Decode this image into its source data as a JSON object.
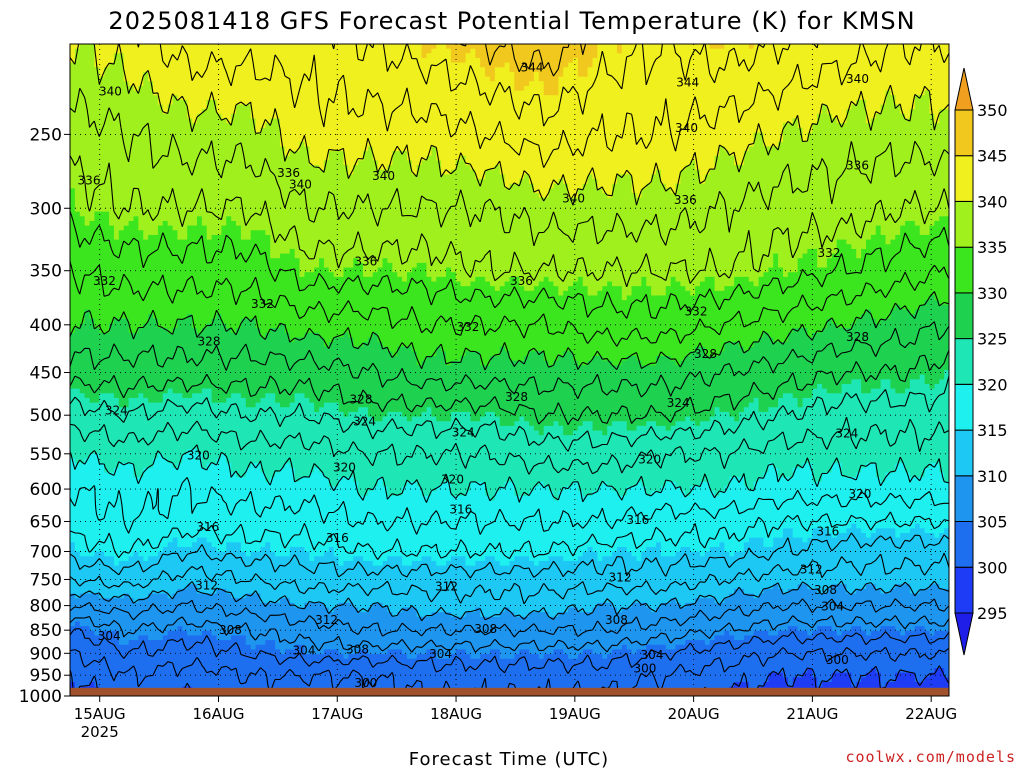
{
  "title": "2025081418 GFS Forecast Potential Temperature (K) for KMSN",
  "credit": "coolwx.com/models",
  "credit_color": "#cc2222",
  "ground_color": "#a0522d",
  "chart_data": {
    "type": "heatmap",
    "title": "2025081418 GFS Forecast Potential Temperature (K) for KMSN",
    "xlabel": "Forecast Time (UTC)",
    "ylabel": "",
    "x_ticks": [
      "15AUG",
      "16AUG",
      "17AUG",
      "18AUG",
      "19AUG",
      "20AUG",
      "21AUG",
      "22AUG"
    ],
    "x_tick_extra": "2025",
    "x_range_days": [
      14.75,
      22.15
    ],
    "y_scale": "log-pressure",
    "y_ticks": [
      250,
      300,
      350,
      400,
      450,
      500,
      550,
      600,
      650,
      700,
      750,
      800,
      850,
      900,
      950,
      1000
    ],
    "y_range_hPa": [
      200,
      1000
    ],
    "surface_hPa": 980,
    "colorbar_levels": [
      295,
      300,
      305,
      310,
      315,
      320,
      325,
      330,
      335,
      340,
      345,
      350
    ],
    "colorbar_colors": [
      "#1e1ee8",
      "#1e3cf5",
      "#1e6ef0",
      "#1e96f0",
      "#1ec8f5",
      "#1ef0f0",
      "#1ee6b4",
      "#1ed250",
      "#3ce61e",
      "#a0f01e",
      "#f0f01e",
      "#f0c81e",
      "#f0a01e"
    ],
    "contour_interval": 2,
    "isentropes_K": [
      298,
      300,
      302,
      304,
      306,
      308,
      310,
      312,
      314,
      316,
      318,
      320,
      322,
      324,
      326,
      328,
      330,
      332,
      334,
      336,
      338,
      340,
      342,
      344,
      346
    ],
    "profile_times_days": [
      14.75,
      15.25,
      15.75,
      16.25,
      16.75,
      17.25,
      17.75,
      18.25,
      18.75,
      19.25,
      19.75,
      20.25,
      20.75,
      21.25,
      21.75,
      22.15
    ],
    "profile_levels_hPa": [
      1000,
      950,
      900,
      850,
      800,
      750,
      700,
      650,
      600,
      550,
      500,
      450,
      400,
      350,
      300,
      250,
      200
    ],
    "theta_profiles_K": [
      [
        299,
        300,
        302,
        304,
        308,
        312,
        315,
        317,
        318,
        320,
        323,
        327,
        330,
        332,
        335,
        337,
        340
      ],
      [
        301,
        302,
        304,
        306,
        309,
        313,
        316,
        318,
        319,
        321,
        324,
        327,
        330,
        333,
        336,
        338,
        341
      ],
      [
        300,
        301,
        303,
        305,
        308,
        311,
        314,
        317,
        318,
        320,
        323,
        327,
        330,
        333,
        336,
        339,
        343
      ],
      [
        301,
        302,
        304,
        306,
        309,
        312,
        315,
        317,
        319,
        321,
        324,
        327,
        330,
        333,
        336,
        339,
        343
      ],
      [
        301,
        302,
        305,
        307,
        310,
        313,
        315,
        317,
        319,
        321,
        324,
        327,
        331,
        335,
        338,
        341,
        343
      ],
      [
        301,
        302,
        305,
        308,
        310,
        313,
        316,
        318,
        320,
        322,
        325,
        328,
        331,
        335,
        338,
        341,
        344
      ],
      [
        302,
        303,
        305,
        308,
        311,
        313,
        316,
        318,
        320,
        322,
        325,
        329,
        332,
        335,
        338,
        341,
        345
      ],
      [
        302,
        303,
        305,
        308,
        311,
        313,
        316,
        318,
        320,
        322,
        325,
        329,
        332,
        336,
        338,
        342,
        346
      ],
      [
        302,
        303,
        305,
        308,
        311,
        313,
        316,
        318,
        320,
        323,
        326,
        329,
        332,
        336,
        339,
        343,
        347
      ],
      [
        302,
        303,
        305,
        308,
        310,
        313,
        315,
        318,
        320,
        323,
        326,
        329,
        333,
        336,
        339,
        342,
        345
      ],
      [
        301,
        302,
        304,
        307,
        310,
        313,
        315,
        317,
        320,
        322,
        326,
        329,
        333,
        336,
        339,
        342,
        344
      ],
      [
        300,
        301,
        303,
        306,
        309,
        312,
        315,
        317,
        320,
        322,
        325,
        328,
        332,
        336,
        338,
        341,
        345
      ],
      [
        299,
        300,
        302,
        305,
        308,
        311,
        314,
        316,
        319,
        321,
        324,
        327,
        331,
        335,
        337,
        340,
        344
      ],
      [
        299,
        300,
        302,
        305,
        308,
        311,
        313,
        316,
        319,
        321,
        323,
        326,
        330,
        334,
        337,
        339,
        343
      ],
      [
        299,
        300,
        302,
        305,
        308,
        311,
        313,
        316,
        319,
        321,
        323,
        326,
        329,
        333,
        336,
        339,
        342
      ],
      [
        298,
        300,
        302,
        305,
        308,
        311,
        313,
        316,
        319,
        321,
        323,
        325,
        328,
        332,
        336,
        339,
        342
      ]
    ],
    "contour_labels": [
      {
        "text": "340",
        "day": 15.09,
        "p": 225
      },
      {
        "text": "336",
        "day": 14.91,
        "p": 280
      },
      {
        "text": "336",
        "day": 16.59,
        "p": 275
      },
      {
        "text": "340",
        "day": 16.69,
        "p": 283
      },
      {
        "text": "340",
        "day": 17.39,
        "p": 277
      },
      {
        "text": "344",
        "day": 18.64,
        "p": 212
      },
      {
        "text": "344",
        "day": 19.95,
        "p": 220
      },
      {
        "text": "340",
        "day": 19.94,
        "p": 246
      },
      {
        "text": "340",
        "day": 18.99,
        "p": 293
      },
      {
        "text": "336",
        "day": 19.93,
        "p": 294
      },
      {
        "text": "340",
        "day": 21.38,
        "p": 218
      },
      {
        "text": "336",
        "day": 21.38,
        "p": 270
      },
      {
        "text": "332",
        "day": 21.14,
        "p": 335
      },
      {
        "text": "332",
        "day": 15.04,
        "p": 359
      },
      {
        "text": "332",
        "day": 16.37,
        "p": 380
      },
      {
        "text": "336",
        "day": 17.24,
        "p": 342
      },
      {
        "text": "336",
        "day": 18.55,
        "p": 359
      },
      {
        "text": "332",
        "day": 18.1,
        "p": 402
      },
      {
        "text": "332",
        "day": 20.02,
        "p": 387
      },
      {
        "text": "328",
        "day": 21.38,
        "p": 412
      },
      {
        "text": "328",
        "day": 15.92,
        "p": 417
      },
      {
        "text": "328",
        "day": 20.1,
        "p": 430
      },
      {
        "text": "328",
        "day": 17.2,
        "p": 481
      },
      {
        "text": "328",
        "day": 18.51,
        "p": 478
      },
      {
        "text": "324",
        "day": 15.14,
        "p": 494
      },
      {
        "text": "324",
        "day": 17.23,
        "p": 508
      },
      {
        "text": "324",
        "day": 18.06,
        "p": 522
      },
      {
        "text": "324",
        "day": 19.87,
        "p": 485
      },
      {
        "text": "324",
        "day": 21.29,
        "p": 523
      },
      {
        "text": "320",
        "day": 15.83,
        "p": 552
      },
      {
        "text": "320",
        "day": 17.06,
        "p": 569
      },
      {
        "text": "320",
        "day": 17.97,
        "p": 586
      },
      {
        "text": "320",
        "day": 19.63,
        "p": 558
      },
      {
        "text": "320",
        "day": 21.4,
        "p": 607
      },
      {
        "text": "316",
        "day": 15.91,
        "p": 659
      },
      {
        "text": "316",
        "day": 17.0,
        "p": 677
      },
      {
        "text": "316",
        "day": 18.04,
        "p": 631
      },
      {
        "text": "316",
        "day": 19.53,
        "p": 648
      },
      {
        "text": "316",
        "day": 21.13,
        "p": 666
      },
      {
        "text": "312",
        "day": 15.9,
        "p": 761
      },
      {
        "text": "312",
        "day": 17.92,
        "p": 763
      },
      {
        "text": "312",
        "day": 19.38,
        "p": 746
      },
      {
        "text": "312",
        "day": 20.99,
        "p": 732
      },
      {
        "text": "308",
        "day": 21.11,
        "p": 770
      },
      {
        "text": "304",
        "day": 21.17,
        "p": 802
      },
      {
        "text": "312",
        "day": 16.91,
        "p": 829
      },
      {
        "text": "308",
        "day": 16.1,
        "p": 850
      },
      {
        "text": "308",
        "day": 18.25,
        "p": 848
      },
      {
        "text": "308",
        "day": 19.35,
        "p": 829
      },
      {
        "text": "304",
        "day": 15.08,
        "p": 862
      },
      {
        "text": "304",
        "day": 16.72,
        "p": 894
      },
      {
        "text": "308",
        "day": 17.17,
        "p": 892
      },
      {
        "text": "304",
        "day": 17.87,
        "p": 902
      },
      {
        "text": "304",
        "day": 19.65,
        "p": 904
      },
      {
        "text": "300",
        "day": 19.59,
        "p": 934
      },
      {
        "text": "300",
        "day": 21.21,
        "p": 915
      },
      {
        "text": "300",
        "day": 17.24,
        "p": 968
      }
    ]
  }
}
